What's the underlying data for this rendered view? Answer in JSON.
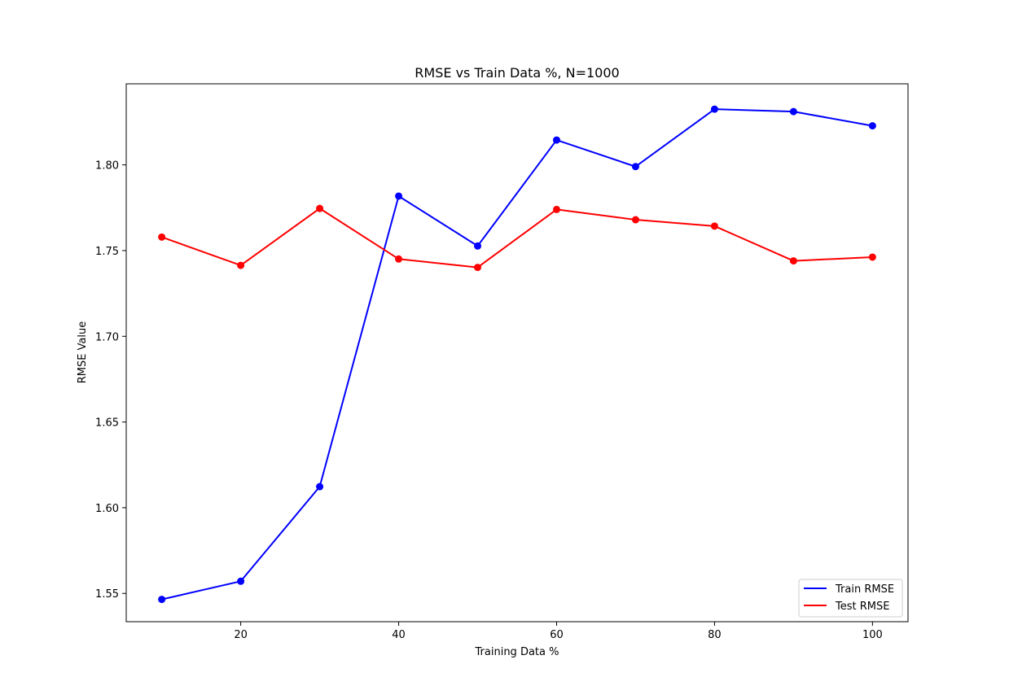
{
  "chart_data": {
    "type": "line",
    "title": "RMSE vs Train Data %, N=1000",
    "xlabel": "Training Data %",
    "ylabel": "RMSE Value",
    "xlim": [
      5.5,
      104.5
    ],
    "ylim": [
      1.5335,
      1.8473
    ],
    "xticks": [
      20,
      40,
      60,
      80,
      100
    ],
    "yticks": [
      1.55,
      1.6,
      1.65,
      1.7,
      1.75,
      1.8
    ],
    "grid": false,
    "legend_position": "lower-right",
    "x": [
      10,
      20,
      30,
      40,
      50,
      60,
      70,
      80,
      90,
      100
    ],
    "series": [
      {
        "name": "Train RMSE",
        "color": "#0000ff",
        "marker": "circle",
        "values": [
          1.5465,
          1.5571,
          1.6123,
          1.7818,
          1.7527,
          1.8145,
          1.799,
          1.8325,
          1.8311,
          1.8228
        ]
      },
      {
        "name": "Test RMSE",
        "color": "#ff0000",
        "marker": "circle",
        "values": [
          1.7579,
          1.7414,
          1.7746,
          1.7451,
          1.7402,
          1.774,
          1.768,
          1.7643,
          1.744,
          1.7462
        ]
      }
    ]
  }
}
